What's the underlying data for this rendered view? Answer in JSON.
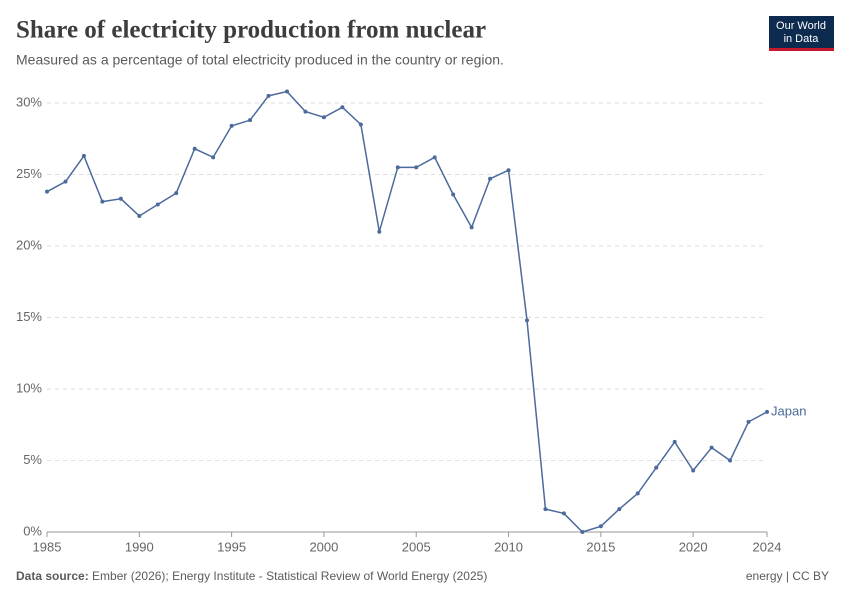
{
  "logo": [
    "Our World",
    "in Data"
  ],
  "chart_data": {
    "type": "line",
    "title": "Share of electricity production from nuclear",
    "subtitle": "Measured as a percentage of total electricity produced in the country or region.",
    "x": [
      1985,
      1986,
      1987,
      1988,
      1989,
      1990,
      1991,
      1992,
      1993,
      1994,
      1995,
      1996,
      1997,
      1998,
      1999,
      2000,
      2001,
      2002,
      2003,
      2004,
      2005,
      2006,
      2007,
      2008,
      2009,
      2010,
      2011,
      2012,
      2013,
      2014,
      2015,
      2016,
      2017,
      2018,
      2019,
      2020,
      2021,
      2022,
      2023,
      2024
    ],
    "series": [
      {
        "name": "Japan",
        "color": "#4c6a9c",
        "values": [
          23.8,
          24.5,
          26.3,
          23.1,
          23.3,
          22.1,
          22.9,
          23.7,
          26.8,
          26.2,
          28.4,
          28.8,
          30.5,
          30.8,
          29.4,
          29.0,
          29.7,
          28.5,
          21.0,
          25.5,
          25.5,
          26.2,
          23.6,
          21.3,
          24.7,
          25.3,
          14.8,
          1.6,
          1.3,
          0,
          0.4,
          1.6,
          2.7,
          4.5,
          6.3,
          4.3,
          5.9,
          5.0,
          7.7,
          8.4
        ]
      }
    ],
    "xlim": [
      1985,
      2024
    ],
    "xticks": [
      1985,
      1990,
      1995,
      2000,
      2005,
      2010,
      2015,
      2020,
      2024
    ],
    "ylim": [
      0,
      30
    ],
    "yticks": [
      {
        "value": 0,
        "label": "0%"
      },
      {
        "value": 5,
        "label": "5%"
      },
      {
        "value": 10,
        "label": "10%"
      },
      {
        "value": 15,
        "label": "15%"
      },
      {
        "value": 20,
        "label": "20%"
      },
      {
        "value": 25,
        "label": "25%"
      },
      {
        "value": 30,
        "label": "30%"
      }
    ],
    "grid": true,
    "source_label": "Data source:",
    "source": "Ember (2026); Energy Institute - Statistical Review of World Energy (2025)",
    "footer_right": "energy | CC BY"
  }
}
